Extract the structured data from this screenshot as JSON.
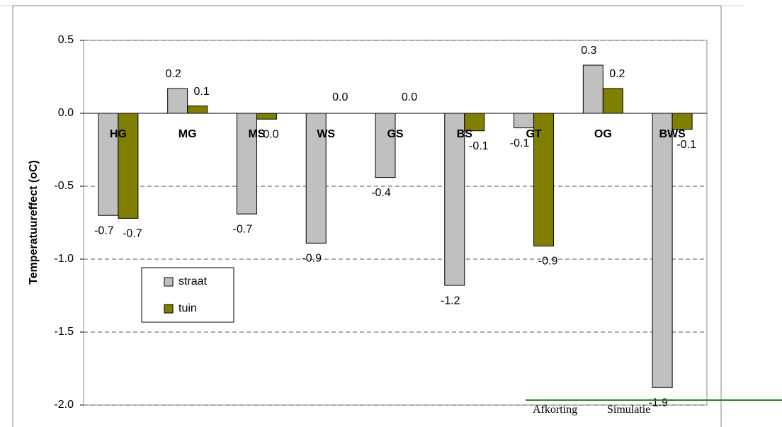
{
  "chart_data": {
    "type": "bar",
    "ylabel": "Temperatuureffect (oC)",
    "categories": [
      "HG",
      "MG",
      "MS",
      "WS",
      "GS",
      "BS",
      "GT",
      "OG",
      "BWS"
    ],
    "series": [
      {
        "name": "straat",
        "color": "#c0c0c0",
        "values": [
          -0.7,
          0.17,
          -0.69,
          -0.89,
          -0.44,
          -1.18,
          -0.1,
          0.33,
          -1.88
        ],
        "value_labels": [
          "-0.7",
          "0.2",
          "-0.7",
          "-0.9",
          "-0.4",
          "-1.2",
          "-0.1",
          "0.3",
          "-1.9"
        ]
      },
      {
        "name": "tuin",
        "color": "#808000",
        "values": [
          -0.72,
          0.05,
          -0.04,
          0,
          0,
          -0.12,
          -0.91,
          0.17,
          -0.11
        ],
        "value_labels": [
          "-0.7",
          "0.1",
          "0.0",
          "0.0",
          "0.0",
          "-0.1",
          "-0.9",
          "0.2",
          "-0.1"
        ]
      }
    ],
    "ylim": [
      -2.0,
      0.5
    ],
    "yticks": [
      0.5,
      {
        "value": 0,
        "label": "0.0"
      },
      -0.5,
      {
        "value": -1.0,
        "label": "-1.0"
      },
      -1.5,
      {
        "value": -2.0,
        "label": "-2.0"
      }
    ],
    "grid": true
  },
  "table": {
    "header": [
      "Afkorting",
      "Simulatie"
    ]
  }
}
